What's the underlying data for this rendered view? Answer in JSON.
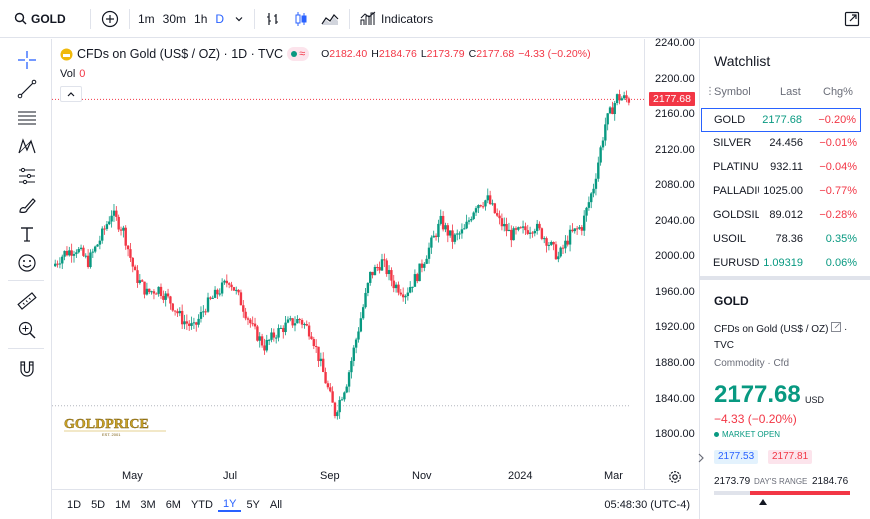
{
  "topbar": {
    "symbol": "GOLD",
    "intervals": [
      "1m",
      "30m",
      "1h",
      "D"
    ],
    "active_interval": "D",
    "indicators_label": "Indicators"
  },
  "lefttools": [
    "crosshair-icon",
    "trend-line-icon",
    "fib-icon",
    "pattern-icon",
    "forecast-icon",
    "brush-icon",
    "text-icon",
    "emoji-icon",
    "ruler-icon",
    "zoom-icon",
    "magnet-icon"
  ],
  "legend": {
    "title": "CFDs on Gold (US$ / OZ) · 1D · TVC",
    "o_label": "O",
    "o": "2182.40",
    "h_label": "H",
    "h": "2184.76",
    "l_label": "L",
    "l": "2173.79",
    "c_label": "C",
    "c": "2177.68",
    "change": "−4.33 (−0.20%)",
    "vol_label": "Vol",
    "vol": "0"
  },
  "watermark": {
    "text": "GOLDPRICE",
    "sub": "EST. 2001"
  },
  "chart_data": {
    "type": "candlestick",
    "ylim": [
      1790,
      2240
    ],
    "y_ticks": [
      "2240.00",
      "2200.00",
      "2160.00",
      "2120.00",
      "2080.00",
      "2040.00",
      "2000.00",
      "1960.00",
      "1920.00",
      "1880.00",
      "1840.00",
      "1800.00"
    ],
    "x_ticks": [
      "May",
      "Jul",
      "Sep",
      "Nov",
      "2024",
      "Mar"
    ],
    "last_price": "2177.68",
    "series": [
      {
        "x": "Apr",
        "close": 1990
      },
      {
        "x": "Apr",
        "close": 2005
      },
      {
        "x": "Apr",
        "close": 2010
      },
      {
        "x": "Apr",
        "close": 1995
      },
      {
        "x": "May",
        "close": 2020
      },
      {
        "x": "May",
        "close": 2050
      },
      {
        "x": "May",
        "close": 2030
      },
      {
        "x": "May",
        "close": 1980
      },
      {
        "x": "May",
        "close": 1960
      },
      {
        "x": "Jun",
        "close": 1965
      },
      {
        "x": "Jun",
        "close": 1950
      },
      {
        "x": "Jun",
        "close": 1930
      },
      {
        "x": "Jul",
        "close": 1920
      },
      {
        "x": "Jul",
        "close": 1945
      },
      {
        "x": "Jul",
        "close": 1960
      },
      {
        "x": "Jul",
        "close": 1975
      },
      {
        "x": "Aug",
        "close": 1950
      },
      {
        "x": "Aug",
        "close": 1920
      },
      {
        "x": "Aug",
        "close": 1900
      },
      {
        "x": "Aug",
        "close": 1915
      },
      {
        "x": "Sep",
        "close": 1925
      },
      {
        "x": "Sep",
        "close": 1930
      },
      {
        "x": "Sep",
        "close": 1915
      },
      {
        "x": "Sep",
        "close": 1870
      },
      {
        "x": "Oct",
        "close": 1825
      },
      {
        "x": "Oct",
        "close": 1860
      },
      {
        "x": "Oct",
        "close": 1920
      },
      {
        "x": "Oct",
        "close": 1980
      },
      {
        "x": "Oct",
        "close": 1995
      },
      {
        "x": "Nov",
        "close": 1970
      },
      {
        "x": "Nov",
        "close": 1960
      },
      {
        "x": "Nov",
        "close": 1980
      },
      {
        "x": "Nov",
        "close": 2010
      },
      {
        "x": "Dec",
        "close": 2040
      },
      {
        "x": "Dec",
        "close": 2020
      },
      {
        "x": "Dec",
        "close": 2030
      },
      {
        "x": "Dec",
        "close": 2060
      },
      {
        "x": "2024",
        "close": 2065
      },
      {
        "x": "2024",
        "close": 2040
      },
      {
        "x": "Jan",
        "close": 2025
      },
      {
        "x": "Jan",
        "close": 2030
      },
      {
        "x": "Feb",
        "close": 2035
      },
      {
        "x": "Feb",
        "close": 2020
      },
      {
        "x": "Feb",
        "close": 2000
      },
      {
        "x": "Feb",
        "close": 2025
      },
      {
        "x": "Feb",
        "close": 2035
      },
      {
        "x": "Mar",
        "close": 2080
      },
      {
        "x": "Mar",
        "close": 2150
      },
      {
        "x": "Mar",
        "close": 2180
      },
      {
        "x": "Mar",
        "close": 2177.68
      }
    ]
  },
  "rangebar": {
    "ranges": [
      "1D",
      "5D",
      "1M",
      "3M",
      "6M",
      "YTD",
      "1Y",
      "5Y",
      "All"
    ],
    "active": "1Y",
    "clock": "05:48:30 (UTC-4)"
  },
  "watchlist": {
    "title": "Watchlist",
    "columns": [
      "Symbol",
      "Last",
      "Chg%"
    ],
    "rows": [
      {
        "symbol": "GOLD",
        "last": "2177.68",
        "chg": "−0.20%",
        "dir": "neg",
        "last_dir": "pos",
        "selected": true
      },
      {
        "symbol": "SILVER",
        "last": "24.456",
        "chg": "−0.01%",
        "dir": "neg",
        "last_dir": "mixed"
      },
      {
        "symbol": "PLATINUM",
        "last": "932.11",
        "chg": "−0.04%",
        "dir": "neg",
        "last_dir": "mixed"
      },
      {
        "symbol": "PALLADIUM",
        "last": "1025.00",
        "chg": "−0.77%",
        "dir": "neg",
        "last_dir": "mixed"
      },
      {
        "symbol": "GOLDSILVER",
        "last": "89.012",
        "chg": "−0.28%",
        "dir": "neg",
        "last_dir": "none"
      },
      {
        "symbol": "USOIL",
        "last": "78.36",
        "chg": "0.35%",
        "dir": "pos",
        "last_dir": "none"
      },
      {
        "symbol": "EURUSD",
        "last": "1.09319",
        "chg": "0.06%",
        "dir": "pos",
        "last_dir": "pos"
      }
    ]
  },
  "details": {
    "symbol": "GOLD",
    "name": "CFDs on Gold (US$ / OZ)",
    "exchange": "TVC",
    "type": "Commodity · Cfd",
    "price": "2177.68",
    "currency": "USD",
    "change": "−4.33 (−0.20%)",
    "status": "MARKET OPEN",
    "bid": "2177.53",
    "ask": "2177.81",
    "day_low": "2173.79",
    "day_range_label": "DAY'S RANGE",
    "day_high": "2184.76",
    "day_range_position": 0.36
  },
  "colors": {
    "up": "#089981",
    "down": "#f23645",
    "accent": "#2962ff"
  }
}
